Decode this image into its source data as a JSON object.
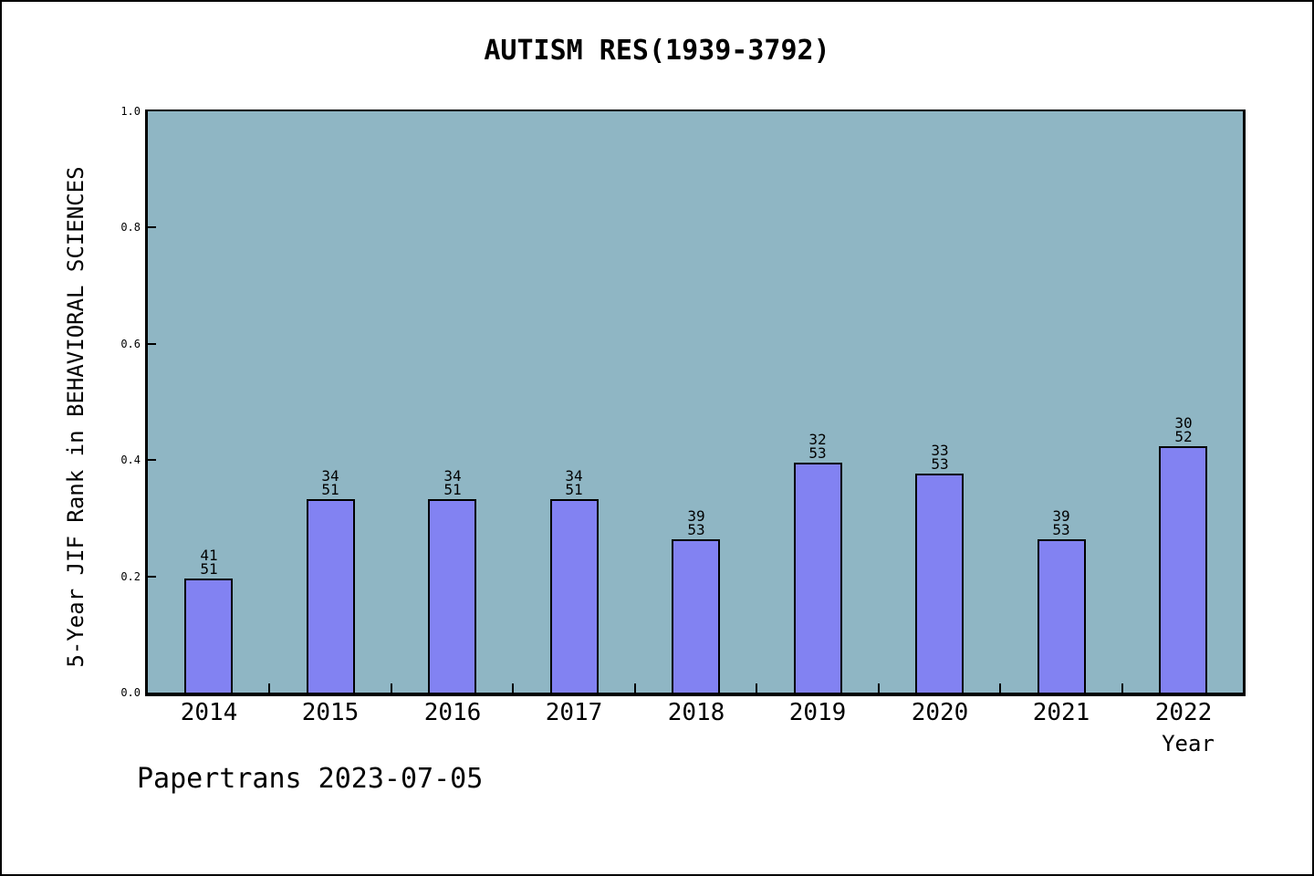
{
  "chart_data": {
    "type": "bar",
    "title": "AUTISM RES(1939-3792)",
    "xlabel": "Year",
    "ylabel": "5-Year JIF Rank in BEHAVIORAL SCIENCES",
    "ylim": [
      0.0,
      1.0
    ],
    "yticks": [
      "0.0",
      "0.2",
      "0.4",
      "0.6",
      "0.8",
      "1.0"
    ],
    "grid": false,
    "legend": null,
    "categories": [
      "2014",
      "2015",
      "2016",
      "2017",
      "2018",
      "2019",
      "2020",
      "2021",
      "2022"
    ],
    "bars": [
      {
        "year": "2014",
        "rank": "41",
        "total": "51",
        "value": 0.1961
      },
      {
        "year": "2015",
        "rank": "34",
        "total": "51",
        "value": 0.3333
      },
      {
        "year": "2016",
        "rank": "34",
        "total": "51",
        "value": 0.3333
      },
      {
        "year": "2017",
        "rank": "34",
        "total": "51",
        "value": 0.3333
      },
      {
        "year": "2018",
        "rank": "39",
        "total": "53",
        "value": 0.2642
      },
      {
        "year": "2019",
        "rank": "32",
        "total": "53",
        "value": 0.3962
      },
      {
        "year": "2020",
        "rank": "33",
        "total": "53",
        "value": 0.3774
      },
      {
        "year": "2021",
        "rank": "39",
        "total": "53",
        "value": 0.2642
      },
      {
        "year": "2022",
        "rank": "30",
        "total": "52",
        "value": 0.4231
      }
    ],
    "colors": {
      "plot_background": "#8fb6c4",
      "bar_fill": "#8282f2",
      "bar_edge": "#000000",
      "text": "#000000"
    }
  },
  "footer": {
    "text": "Papertrans 2023-07-05"
  }
}
